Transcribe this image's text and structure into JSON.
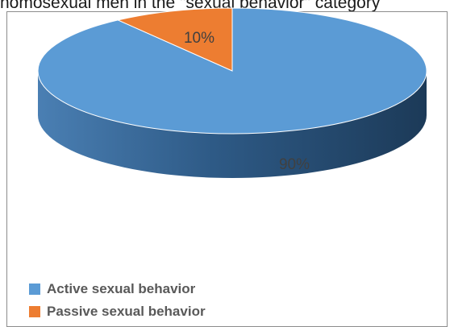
{
  "caption": "homosexual men in the \"sexual behavior\" category",
  "chart_data": {
    "type": "pie",
    "style": "3d",
    "title": "",
    "slices": [
      {
        "label": "Active sexual behavior",
        "value": 90,
        "display": "90%",
        "color": "#5b9bd5"
      },
      {
        "label": "Passive sexual behavior",
        "value": 10,
        "display": "10%",
        "color": "#ed7d31"
      }
    ],
    "legend_placement": "bottom-left"
  }
}
